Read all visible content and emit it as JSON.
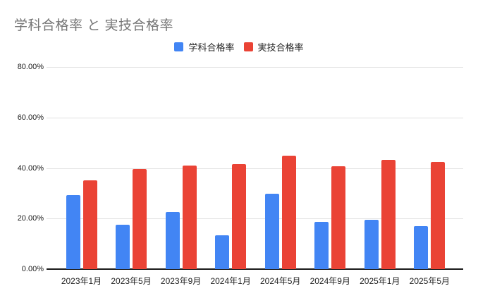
{
  "chart_data": {
    "type": "bar",
    "title": "学科合格率 と 実技合格率",
    "categories": [
      "2023年1月",
      "2023年5月",
      "2023年9月",
      "2024年1月",
      "2024年5月",
      "2024年9月",
      "2025年1月",
      "2025年5月"
    ],
    "series": [
      {
        "name": "学科合格率",
        "color": "#4285f4",
        "values": [
          29.3,
          17.5,
          22.6,
          13.4,
          29.8,
          18.7,
          19.6,
          17.1
        ]
      },
      {
        "name": "実技合格率",
        "color": "#ea4335",
        "values": [
          35.0,
          39.5,
          41.0,
          41.5,
          45.0,
          40.8,
          43.2,
          42.3
        ]
      }
    ],
    "xlabel": "",
    "ylabel": "",
    "ylim": [
      0,
      80
    ],
    "ytick_values": [
      0,
      20,
      40,
      60,
      80
    ],
    "ytick_labels": [
      "0.00%",
      "20.00%",
      "40.00%",
      "60.00%",
      "80.00%"
    ],
    "grid": true,
    "legend_position": "top"
  },
  "colors": {
    "series1": "#4285f4",
    "series2": "#ea4335",
    "title_text": "#757575",
    "axis_text": "#212121",
    "gridline": "#e0e0e0",
    "baseline": "#1a1a1a",
    "background": "#ffffff"
  }
}
